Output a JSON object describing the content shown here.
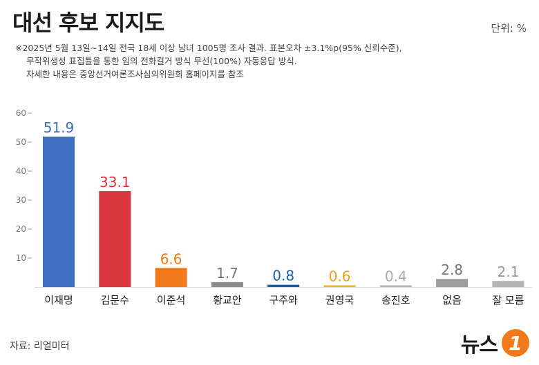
{
  "header": {
    "title": "대선 후보 지지도",
    "unit": "단위: %"
  },
  "notes": [
    "※2025년 5월 13일~14일 전국 18세 이상 남녀 1005명 조사 결과. 표본오차 ±3.1%p(95% 신뢰수준),",
    "무작위생성 표집틀을 통한 임의 전화걸거 방식 무선(100%) 자동응답 방식.",
    "자세한 내용은 중앙선거여론조사심의위원회 홈페이지를 참조"
  ],
  "footer": {
    "source": "자료: 리얼미터",
    "logo_text": "뉴스",
    "logo_mark": "1"
  },
  "chart_data": {
    "type": "bar",
    "categories": [
      "이재명",
      "김문수",
      "이준석",
      "황교안",
      "구주와",
      "권영국",
      "송진호",
      "없음",
      "잘 모름"
    ],
    "values": [
      51.9,
      33.1,
      6.6,
      1.7,
      0.8,
      0.6,
      0.4,
      2.8,
      2.1
    ],
    "value_labels": [
      "51.9",
      "33.1",
      "6.6",
      "1.7",
      "0.8",
      "0.6",
      "0.4",
      "2.8",
      "2.1"
    ],
    "colors": [
      "#3e6fbf",
      "#d9363e",
      "#f07a1a",
      "#8c8c8c",
      "#1a5fa8",
      "#f2b134",
      "#b5b5b5",
      "#9e9e9e",
      "#b5b5b5"
    ],
    "label_colors": [
      "#3e6fbf",
      "#d9363e",
      "#f07a1a",
      "#777777",
      "#1a5fa8",
      "#e8a21c",
      "#aaaaaa",
      "#777777",
      "#999999"
    ],
    "yticks": [
      10,
      20,
      30,
      40,
      50,
      60
    ],
    "ylim": [
      0,
      60
    ],
    "grid": false
  }
}
